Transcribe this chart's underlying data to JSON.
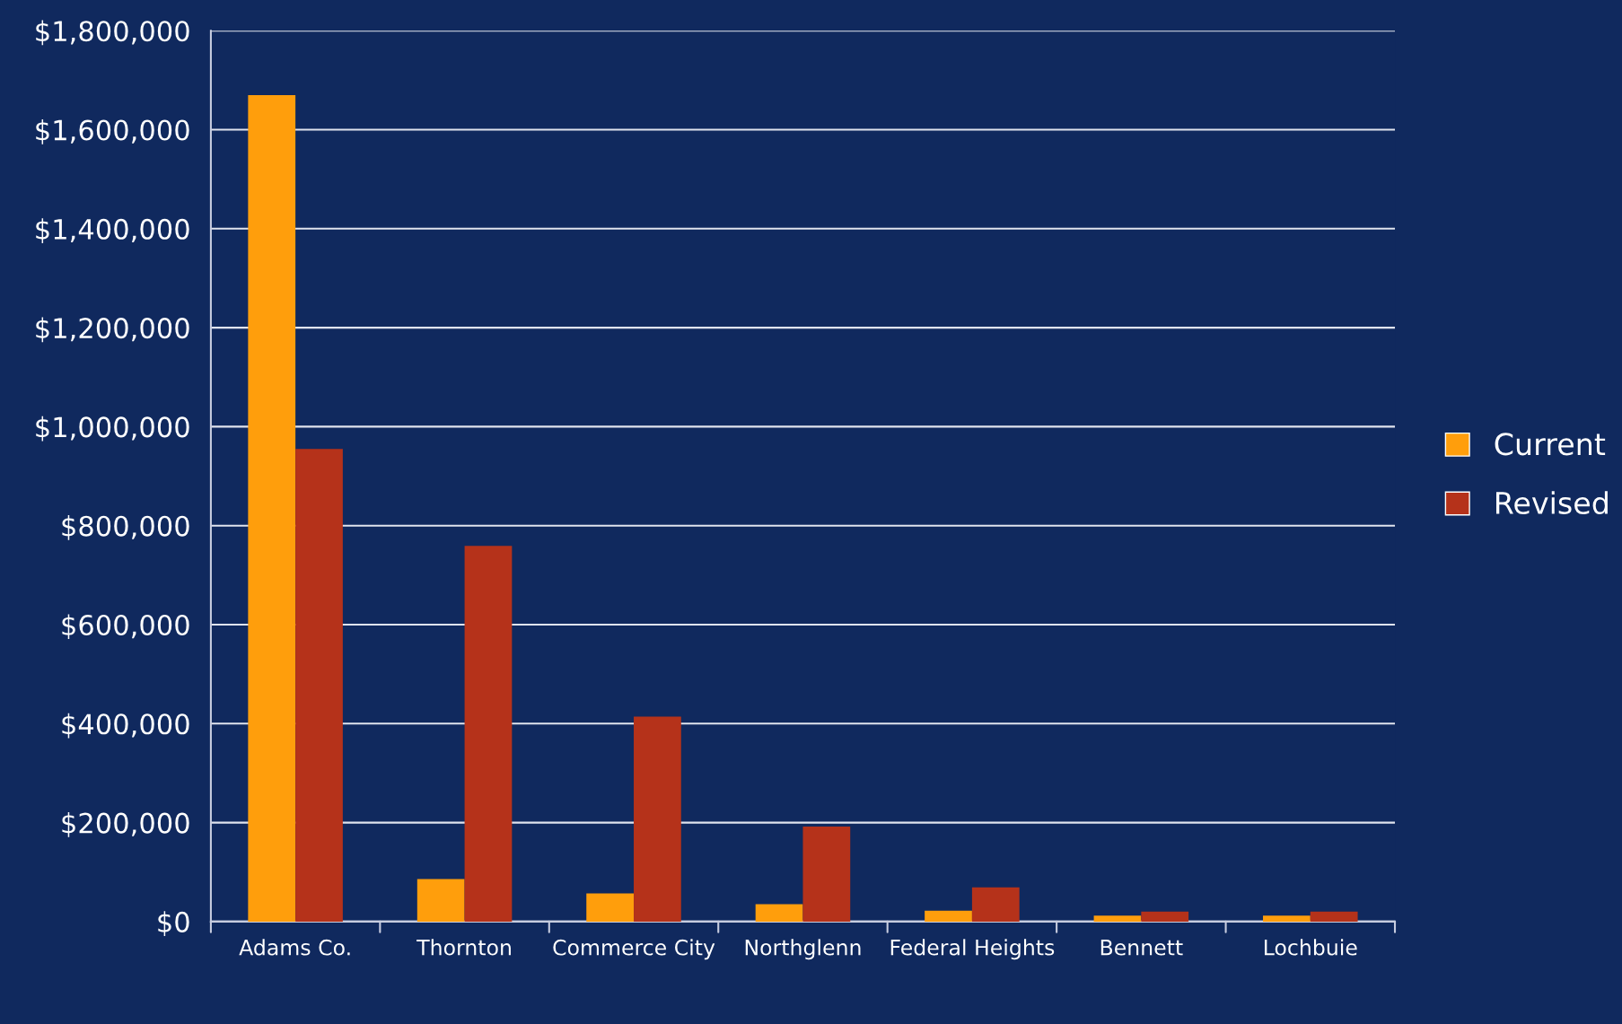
{
  "chart_data": {
    "type": "bar",
    "categories": [
      "Adams Co.",
      "Thornton",
      "Commerce City",
      "Northglenn",
      "Federal Heights",
      "Bennett",
      "Lochbuie"
    ],
    "series": [
      {
        "name": "Current",
        "color": "#ff9e0c",
        "values": [
          1670000,
          86000,
          57000,
          35000,
          22000,
          12000,
          12000
        ]
      },
      {
        "name": "Revised",
        "color": "#b5321a",
        "values": [
          955000,
          759000,
          414000,
          192000,
          69000,
          20000,
          20000
        ]
      }
    ],
    "ylim": [
      0,
      1800000
    ],
    "yticks": [
      {
        "value": 0,
        "label": "$0"
      },
      {
        "value": 200000,
        "label": "$200,000"
      },
      {
        "value": 400000,
        "label": "$400,000"
      },
      {
        "value": 600000,
        "label": "$600,000"
      },
      {
        "value": 800000,
        "label": "$800,000"
      },
      {
        "value": 1000000,
        "label": "$1,000,000"
      },
      {
        "value": 1200000,
        "label": "$1,200,000"
      },
      {
        "value": 1400000,
        "label": "$1,400,000"
      },
      {
        "value": 1600000,
        "label": "$1,600,000"
      },
      {
        "value": 1800000,
        "label": "$1,800,000"
      }
    ],
    "grid": "y",
    "legend": "right"
  }
}
